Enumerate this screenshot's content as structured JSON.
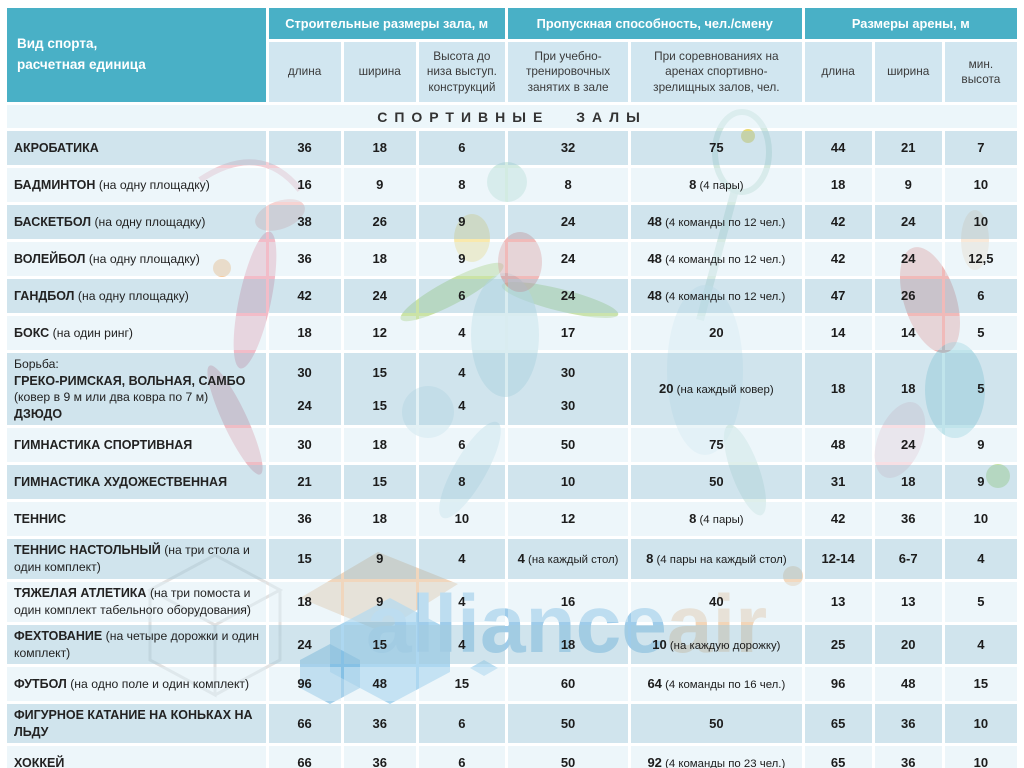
{
  "header": {
    "sport_column": "Вид спорта,\nрасчетная единица",
    "groups": [
      {
        "label": "Строительные размеры зала, м",
        "cols": [
          "длина",
          "ширина",
          "Высота до низа выступ. конструкций"
        ]
      },
      {
        "label": "Пропускная способность, чел./смену",
        "cols": [
          "При учебно-тренировочных занятих в зале",
          "При соревнованиях на аренах спортивно-зрелищных залов, чел."
        ]
      },
      {
        "label": "Размеры арены, м",
        "cols": [
          "длина",
          "ширина",
          "мин. высота"
        ]
      }
    ]
  },
  "section_title": "СПОРТИВНЫЕ ЗАЛЫ",
  "rows": [
    {
      "name": [
        {
          "t": "АКРОБАТИКА",
          "b": true
        }
      ],
      "cells": [
        [
          {
            "v": "36"
          }
        ],
        [
          {
            "v": "18"
          }
        ],
        [
          {
            "v": "6"
          }
        ],
        [
          {
            "v": "32"
          }
        ],
        [
          {
            "v": "75"
          }
        ],
        [
          {
            "v": "44"
          }
        ],
        [
          {
            "v": "21"
          }
        ],
        [
          {
            "v": "7"
          }
        ]
      ]
    },
    {
      "name": [
        {
          "t": "БАДМИНТОН ",
          "b": true
        },
        {
          "t": "(на одну площадку)",
          "b": false
        }
      ],
      "cells": [
        [
          {
            "v": "16"
          }
        ],
        [
          {
            "v": "9"
          }
        ],
        [
          {
            "v": "8"
          }
        ],
        [
          {
            "v": "8"
          }
        ],
        [
          {
            "v": "8",
            "note": "(4 пары)"
          }
        ],
        [
          {
            "v": "18"
          }
        ],
        [
          {
            "v": "9"
          }
        ],
        [
          {
            "v": "10"
          }
        ]
      ]
    },
    {
      "name": [
        {
          "t": "БАСКЕТБОЛ ",
          "b": true
        },
        {
          "t": "(на одну площадку)",
          "b": false
        }
      ],
      "cells": [
        [
          {
            "v": "38"
          }
        ],
        [
          {
            "v": "26"
          }
        ],
        [
          {
            "v": "9"
          }
        ],
        [
          {
            "v": "24"
          }
        ],
        [
          {
            "v": "48",
            "note": "(4 команды по 12 чел.)"
          }
        ],
        [
          {
            "v": "42"
          }
        ],
        [
          {
            "v": "24"
          }
        ],
        [
          {
            "v": "10"
          }
        ]
      ]
    },
    {
      "name": [
        {
          "t": "ВОЛЕЙБОЛ ",
          "b": true
        },
        {
          "t": "(на одну площадку)",
          "b": false
        }
      ],
      "cells": [
        [
          {
            "v": "36"
          }
        ],
        [
          {
            "v": "18"
          }
        ],
        [
          {
            "v": "9"
          }
        ],
        [
          {
            "v": "24"
          }
        ],
        [
          {
            "v": "48",
            "note": "(4 команды по 12 чел.)"
          }
        ],
        [
          {
            "v": "42"
          }
        ],
        [
          {
            "v": "24"
          }
        ],
        [
          {
            "v": "12,5"
          }
        ]
      ]
    },
    {
      "name": [
        {
          "t": "ГАНДБОЛ ",
          "b": true
        },
        {
          "t": "(на одну площадку)",
          "b": false
        }
      ],
      "cells": [
        [
          {
            "v": "42"
          }
        ],
        [
          {
            "v": "24"
          }
        ],
        [
          {
            "v": "6"
          }
        ],
        [
          {
            "v": "24"
          }
        ],
        [
          {
            "v": "48",
            "note": "(4 команды по 12 чел.)"
          }
        ],
        [
          {
            "v": "47"
          }
        ],
        [
          {
            "v": "26"
          }
        ],
        [
          {
            "v": "6"
          }
        ]
      ]
    },
    {
      "name": [
        {
          "t": "БОКС ",
          "b": true
        },
        {
          "t": "(на один ринг)",
          "b": false
        }
      ],
      "cells": [
        [
          {
            "v": "18"
          }
        ],
        [
          {
            "v": "12"
          }
        ],
        [
          {
            "v": "4"
          }
        ],
        [
          {
            "v": "17"
          }
        ],
        [
          {
            "v": "20"
          }
        ],
        [
          {
            "v": "14"
          }
        ],
        [
          {
            "v": "14"
          }
        ],
        [
          {
            "v": "5"
          }
        ]
      ]
    },
    {
      "name": [
        {
          "t": "Борьба:",
          "b": false,
          "br": true
        },
        {
          "t": "ГРЕКО-РИМСКАЯ, ВОЛЬНАЯ, САМБО",
          "b": true,
          "br": true
        },
        {
          "t": "(ковер в 9 м или два ковра по 7 м)",
          "b": false,
          "br": true
        },
        {
          "t": "ДЗЮДО",
          "b": true
        }
      ],
      "cells": [
        [
          {
            "v": "30"
          },
          {
            "v": "24"
          }
        ],
        [
          {
            "v": "15"
          },
          {
            "v": "15"
          }
        ],
        [
          {
            "v": "4"
          },
          {
            "v": "4"
          }
        ],
        [
          {
            "v": "30"
          },
          {
            "v": "30"
          }
        ],
        [
          {
            "v": "20",
            "note": "(на каждый ковер)"
          }
        ],
        [
          {
            "v": "18"
          }
        ],
        [
          {
            "v": "18"
          }
        ],
        [
          {
            "v": "5"
          }
        ]
      ]
    },
    {
      "name": [
        {
          "t": "ГИМНАСТИКА СПОРТИВНАЯ",
          "b": true
        }
      ],
      "cells": [
        [
          {
            "v": "30"
          }
        ],
        [
          {
            "v": "18"
          }
        ],
        [
          {
            "v": "6"
          }
        ],
        [
          {
            "v": "50"
          }
        ],
        [
          {
            "v": "75"
          }
        ],
        [
          {
            "v": "48"
          }
        ],
        [
          {
            "v": "24"
          }
        ],
        [
          {
            "v": "9"
          }
        ]
      ]
    },
    {
      "name": [
        {
          "t": "ГИМНАСТИКА ХУДОЖЕСТВЕННАЯ",
          "b": true
        }
      ],
      "cells": [
        [
          {
            "v": "21"
          }
        ],
        [
          {
            "v": "15"
          }
        ],
        [
          {
            "v": "8"
          }
        ],
        [
          {
            "v": "10"
          }
        ],
        [
          {
            "v": "50"
          }
        ],
        [
          {
            "v": "31"
          }
        ],
        [
          {
            "v": "18"
          }
        ],
        [
          {
            "v": "9"
          }
        ]
      ]
    },
    {
      "name": [
        {
          "t": "ТЕННИС",
          "b": true
        }
      ],
      "cells": [
        [
          {
            "v": "36"
          }
        ],
        [
          {
            "v": "18"
          }
        ],
        [
          {
            "v": "10"
          }
        ],
        [
          {
            "v": "12"
          }
        ],
        [
          {
            "v": "8",
            "note": "(4 пары)"
          }
        ],
        [
          {
            "v": "42"
          }
        ],
        [
          {
            "v": "36"
          }
        ],
        [
          {
            "v": "10"
          }
        ]
      ]
    },
    {
      "name": [
        {
          "t": "ТЕННИС НАСТОЛЬНЫЙ ",
          "b": true
        },
        {
          "t": "(на три стола и один комплект)",
          "b": false
        }
      ],
      "cells": [
        [
          {
            "v": "15"
          }
        ],
        [
          {
            "v": "9"
          }
        ],
        [
          {
            "v": "4"
          }
        ],
        [
          {
            "v": "4",
            "note": "(на каждый стол)"
          }
        ],
        [
          {
            "v": "8",
            "note": "(4 пары на каждый стол)"
          }
        ],
        [
          {
            "v": "12-14"
          }
        ],
        [
          {
            "v": "6-7"
          }
        ],
        [
          {
            "v": "4"
          }
        ]
      ]
    },
    {
      "name": [
        {
          "t": "ТЯЖЕЛАЯ АТЛЕТИКА ",
          "b": true
        },
        {
          "t": "(на три помоста и один комплект табельного оборудования)",
          "b": false
        }
      ],
      "cells": [
        [
          {
            "v": "18"
          }
        ],
        [
          {
            "v": "9"
          }
        ],
        [
          {
            "v": "4"
          }
        ],
        [
          {
            "v": "16"
          }
        ],
        [
          {
            "v": "40"
          }
        ],
        [
          {
            "v": "13"
          }
        ],
        [
          {
            "v": "13"
          }
        ],
        [
          {
            "v": "5"
          }
        ]
      ]
    },
    {
      "name": [
        {
          "t": "ФЕХТОВАНИЕ ",
          "b": true
        },
        {
          "t": "(на четыре дорожки и один комплект)",
          "b": false
        }
      ],
      "cells": [
        [
          {
            "v": "24"
          }
        ],
        [
          {
            "v": "15"
          }
        ],
        [
          {
            "v": "4"
          }
        ],
        [
          {
            "v": "18"
          }
        ],
        [
          {
            "v": "10",
            "note": "(на каждую дорожку)"
          }
        ],
        [
          {
            "v": "25"
          }
        ],
        [
          {
            "v": "20"
          }
        ],
        [
          {
            "v": "4"
          }
        ]
      ]
    },
    {
      "name": [
        {
          "t": "ФУТБОЛ ",
          "b": true
        },
        {
          "t": "(на одно поле и один комплект)",
          "b": false
        }
      ],
      "cells": [
        [
          {
            "v": "96"
          }
        ],
        [
          {
            "v": "48"
          }
        ],
        [
          {
            "v": "15"
          }
        ],
        [
          {
            "v": "60"
          }
        ],
        [
          {
            "v": "64",
            "note": "(4 команды по 16 чел.)"
          }
        ],
        [
          {
            "v": "96"
          }
        ],
        [
          {
            "v": "48"
          }
        ],
        [
          {
            "v": "15"
          }
        ]
      ]
    },
    {
      "name": [
        {
          "t": "ФИГУРНОЕ КАТАНИЕ НА КОНЬКАХ НА ЛЬДУ",
          "b": true
        }
      ],
      "cells": [
        [
          {
            "v": "66"
          }
        ],
        [
          {
            "v": "36"
          }
        ],
        [
          {
            "v": "6"
          }
        ],
        [
          {
            "v": "50"
          }
        ],
        [
          {
            "v": "50"
          }
        ],
        [
          {
            "v": "65"
          }
        ],
        [
          {
            "v": "36"
          }
        ],
        [
          {
            "v": "10"
          }
        ]
      ]
    },
    {
      "name": [
        {
          "t": "ХОККЕЙ",
          "b": true
        }
      ],
      "cells": [
        [
          {
            "v": "66"
          }
        ],
        [
          {
            "v": "36"
          }
        ],
        [
          {
            "v": "6"
          }
        ],
        [
          {
            "v": "50"
          }
        ],
        [
          {
            "v": "92",
            "note": "(4 команды по 23 чел.)"
          }
        ],
        [
          {
            "v": "65"
          }
        ],
        [
          {
            "v": "36"
          }
        ],
        [
          {
            "v": "10"
          }
        ]
      ]
    }
  ],
  "watermark": {
    "blue": "alliance",
    "peach": "air"
  },
  "colors": {
    "header_teal": "#49b0c6",
    "watermark_blue": "#9fccea",
    "watermark_peach": "#f2d5b8",
    "row_dark": "#d0e4ee",
    "row_light": "#edf6fa"
  }
}
